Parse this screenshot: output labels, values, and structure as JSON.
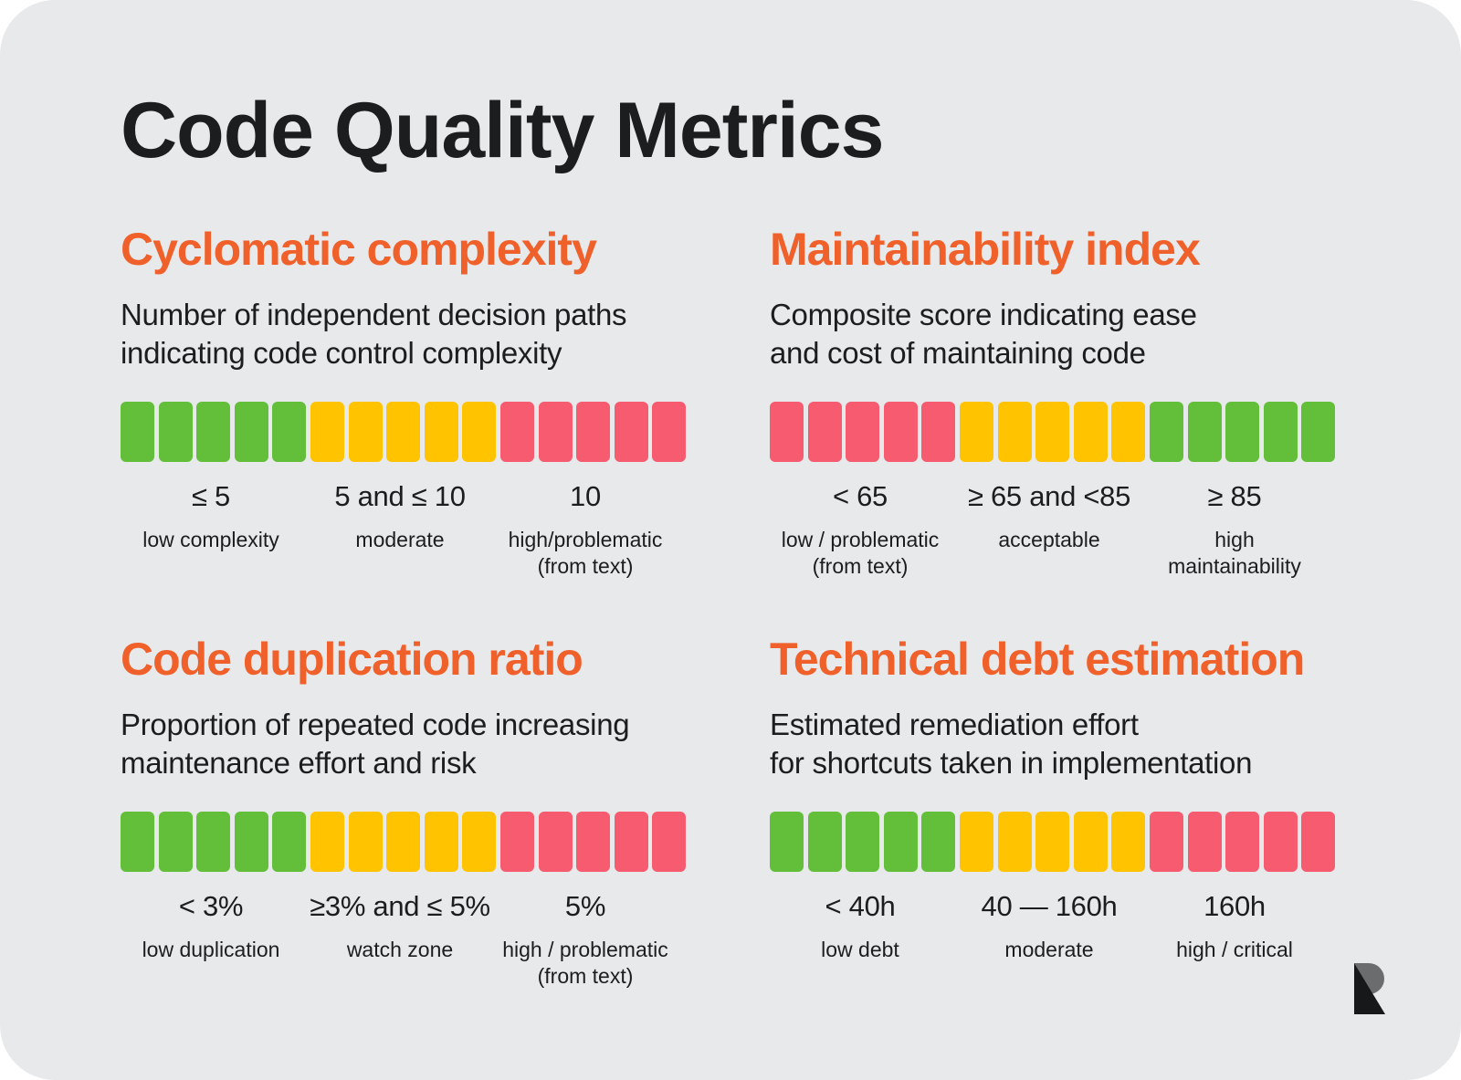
{
  "title": "Code Quality Metrics",
  "colors": {
    "heading": "#f0602a",
    "text": "#1c1d1f",
    "background": "#e8e9eb",
    "green": "#63be3a",
    "yellow": "#ffc300",
    "red": "#f65b6f"
  },
  "metrics": [
    {
      "name": "Cyclomatic complexity",
      "description": "Number of independent decision paths\nindicating code control complexity",
      "segments": [
        "green",
        "green",
        "green",
        "green",
        "green",
        "yellow",
        "yellow",
        "yellow",
        "yellow",
        "yellow",
        "red",
        "red",
        "red",
        "red",
        "red"
      ],
      "ranges": [
        {
          "value": "≤ 5",
          "label": "low complexity"
        },
        {
          "value": "5 and ≤ 10",
          "label": "moderate"
        },
        {
          "value": "10",
          "label": "high/problematic\n(from text)"
        }
      ]
    },
    {
      "name": "Maintainability index",
      "description": "Composite score indicating ease\nand cost of maintaining code",
      "segments": [
        "red",
        "red",
        "red",
        "red",
        "red",
        "yellow",
        "yellow",
        "yellow",
        "yellow",
        "yellow",
        "green",
        "green",
        "green",
        "green",
        "green"
      ],
      "ranges": [
        {
          "value": "< 65",
          "label": "low / problematic\n(from text)"
        },
        {
          "value": "≥ 65 and <85",
          "label": "acceptable"
        },
        {
          "value": "≥ 85",
          "label": "high\nmaintainability"
        }
      ]
    },
    {
      "name": "Code duplication ratio",
      "description": "Proportion of repeated code increasing\nmaintenance effort and risk",
      "segments": [
        "green",
        "green",
        "green",
        "green",
        "green",
        "yellow",
        "yellow",
        "yellow",
        "yellow",
        "yellow",
        "red",
        "red",
        "red",
        "red",
        "red"
      ],
      "ranges": [
        {
          "value": "< 3%",
          "label": "low duplication"
        },
        {
          "value": "≥3% and ≤ 5%",
          "label": "watch zone"
        },
        {
          "value": "5%",
          "label": "high / problematic\n(from text)"
        }
      ]
    },
    {
      "name": "Technical debt estimation",
      "description": "Estimated remediation effort\nfor shortcuts taken in implementation",
      "segments": [
        "green",
        "green",
        "green",
        "green",
        "green",
        "yellow",
        "yellow",
        "yellow",
        "yellow",
        "yellow",
        "red",
        "red",
        "red",
        "red",
        "red"
      ],
      "ranges": [
        {
          "value": "< 40h",
          "label": "low debt"
        },
        {
          "value": "40 — 160h",
          "label": "moderate"
        },
        {
          "value": "160h",
          "label": "high / critical"
        }
      ]
    }
  ],
  "logo": {
    "icon": "brand-logo-icon"
  }
}
